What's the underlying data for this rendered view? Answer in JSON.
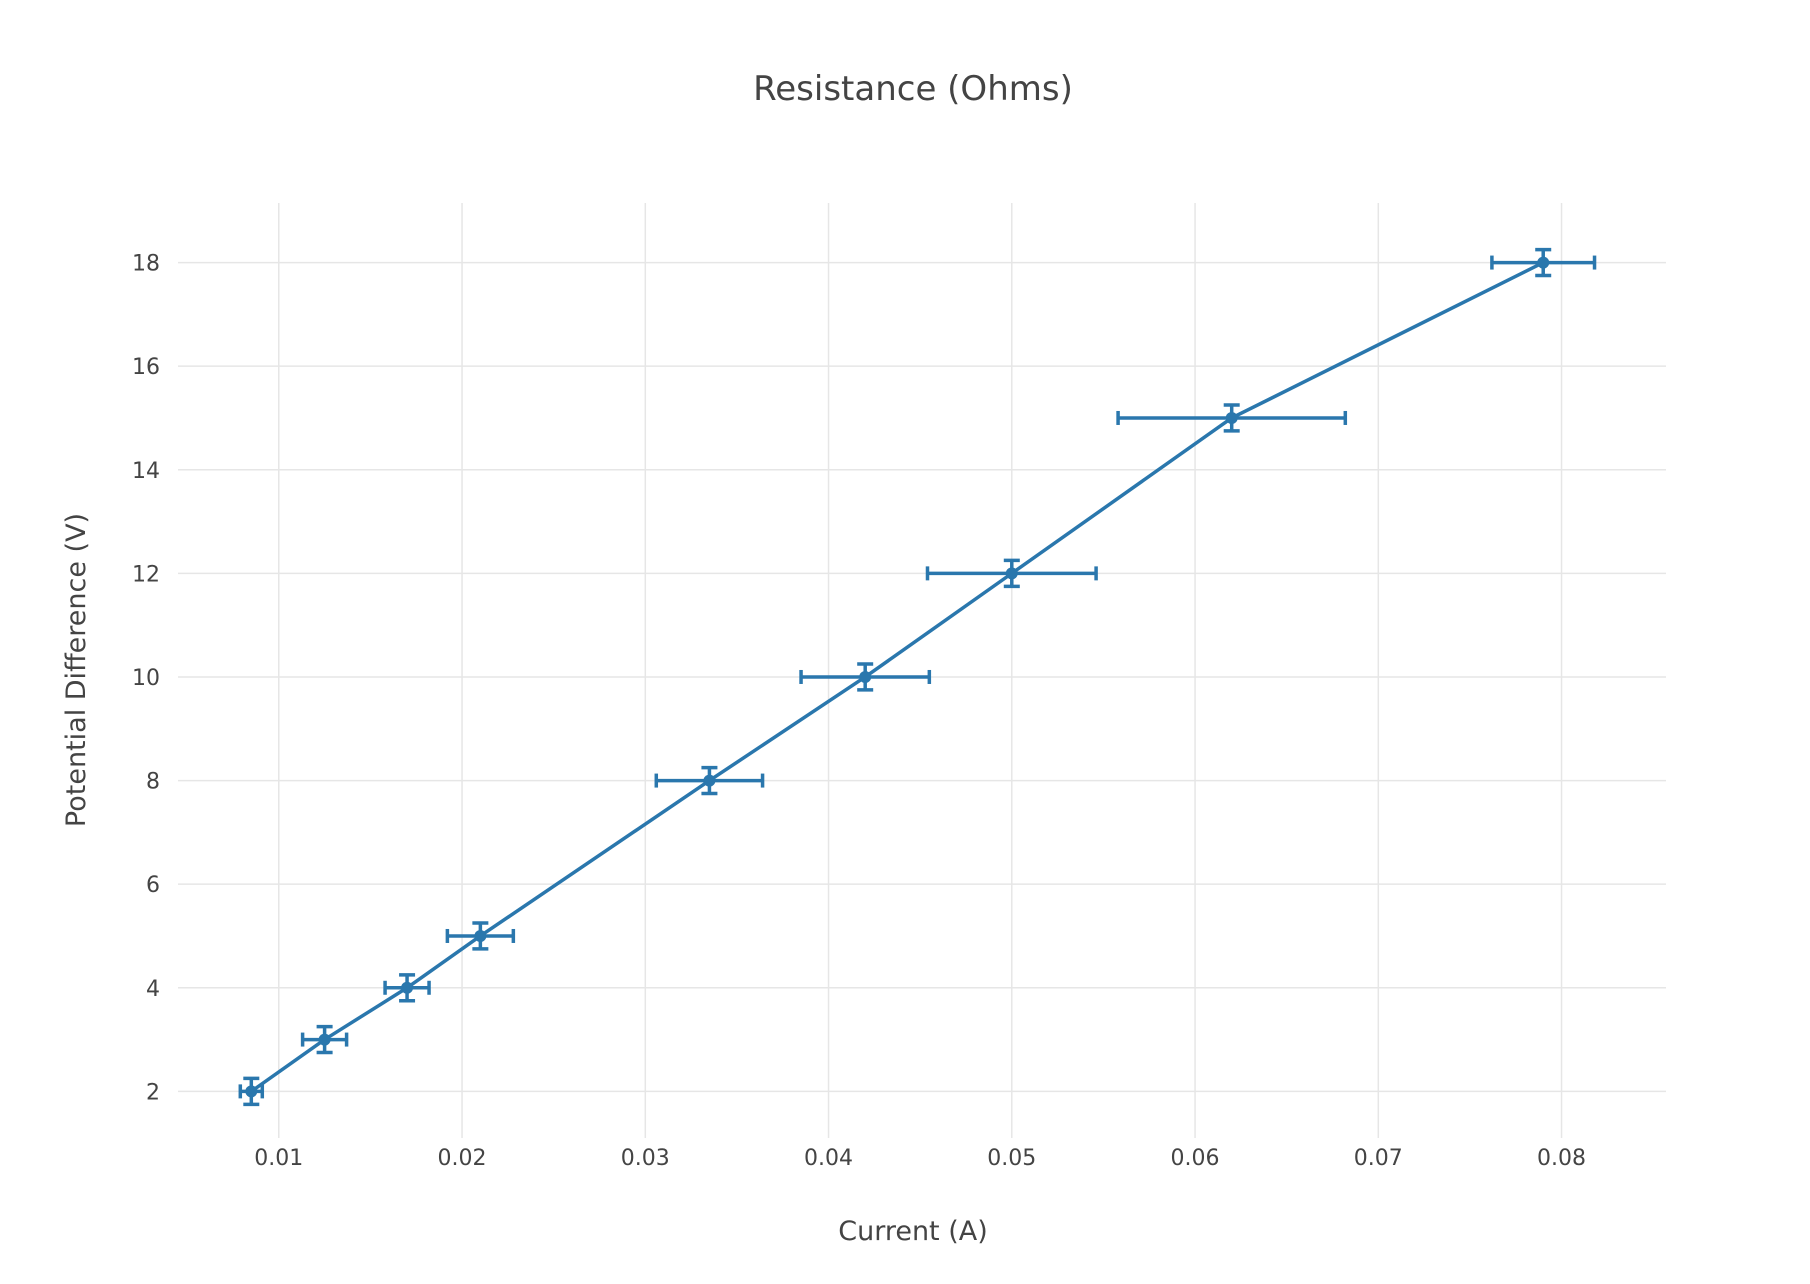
{
  "chart_data": {
    "type": "scatter",
    "mode": "lines+markers",
    "title": "Resistance (Ohms)",
    "xlabel": "Current (A)",
    "ylabel": "Potential Difference (V)",
    "xlim": [
      0.0045,
      0.0857
    ],
    "ylim": [
      1.1,
      19.15
    ],
    "x_ticks": [
      0.01,
      0.02,
      0.03,
      0.04,
      0.05,
      0.06,
      0.07,
      0.08
    ],
    "x_tick_labels": [
      "0.01",
      "0.02",
      "0.03",
      "0.04",
      "0.05",
      "0.06",
      "0.07",
      "0.08"
    ],
    "y_ticks": [
      2,
      4,
      6,
      8,
      10,
      12,
      14,
      16,
      18
    ],
    "y_tick_labels": [
      "2",
      "4",
      "6",
      "8",
      "10",
      "12",
      "14",
      "16",
      "18"
    ],
    "grid": true,
    "legend": "none",
    "series": [
      {
        "color": "#2a77ad",
        "x": [
          0.0085,
          0.0125,
          0.017,
          0.021,
          0.0335,
          0.042,
          0.05,
          0.062,
          0.079
        ],
        "y": [
          2,
          3,
          4,
          5,
          8,
          10,
          12,
          15,
          18
        ],
        "x_error": [
          0.0006,
          0.0012,
          0.0012,
          0.0018,
          0.0029,
          0.0035,
          0.0046,
          0.0062,
          0.0028
        ],
        "y_error": [
          0.25,
          0.25,
          0.25,
          0.25,
          0.25,
          0.25,
          0.25,
          0.25,
          0.25
        ]
      }
    ]
  }
}
